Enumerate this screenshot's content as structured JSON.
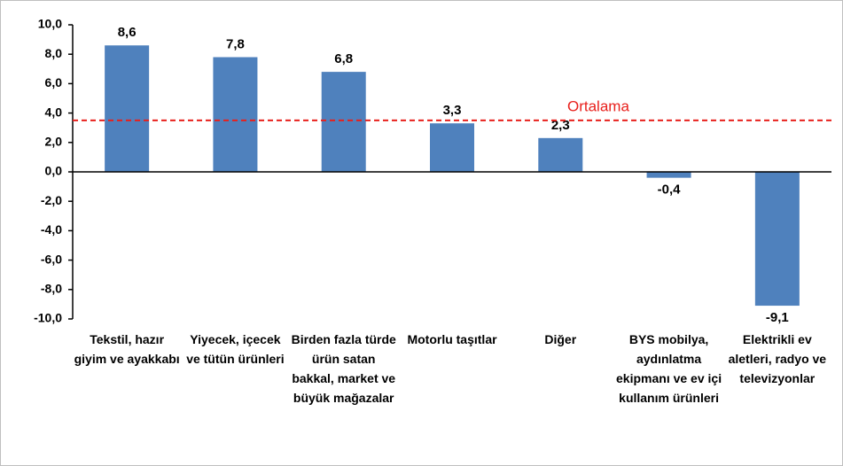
{
  "chart_data": {
    "type": "bar",
    "categories": [
      "Tekstil, hazır giyim ve ayakkabı",
      "Yiyecek, içecek ve tütün ürünleri",
      "Birden fazla türde ürün satan bakkal, market ve büyük mağazalar",
      "Motorlu taşıtlar",
      "Diğer",
      "BYS mobilya, aydınlatma ekipmanı ve ev içi kullanım ürünleri",
      "Elektrikli ev aletleri, radyo ve televizyonlar"
    ],
    "values": [
      8.6,
      7.8,
      6.8,
      3.3,
      2.3,
      -0.4,
      -9.1
    ],
    "value_labels": [
      "8,6",
      "7,8",
      "6,8",
      "3,3",
      "2,3",
      "-0,4",
      "-9,1"
    ],
    "color": "#4f81bd",
    "ylim": [
      -10,
      10
    ],
    "yticks": [
      {
        "value": -10,
        "label": "-10,0"
      },
      {
        "value": -8,
        "label": "-8,0"
      },
      {
        "value": -6,
        "label": "-6,0"
      },
      {
        "value": -4,
        "label": "-4,0"
      },
      {
        "value": -2,
        "label": "-2,0"
      },
      {
        "value": 0,
        "label": "0,0"
      },
      {
        "value": 2,
        "label": "2,0"
      },
      {
        "value": 4,
        "label": "4,0"
      },
      {
        "value": 6,
        "label": "6,0"
      },
      {
        "value": 8,
        "label": "8,0"
      },
      {
        "value": 10,
        "label": "10,0"
      }
    ],
    "grid": false,
    "reference_line": {
      "value": 3.5,
      "label": "Ortalama",
      "color": "#e8201c"
    }
  }
}
